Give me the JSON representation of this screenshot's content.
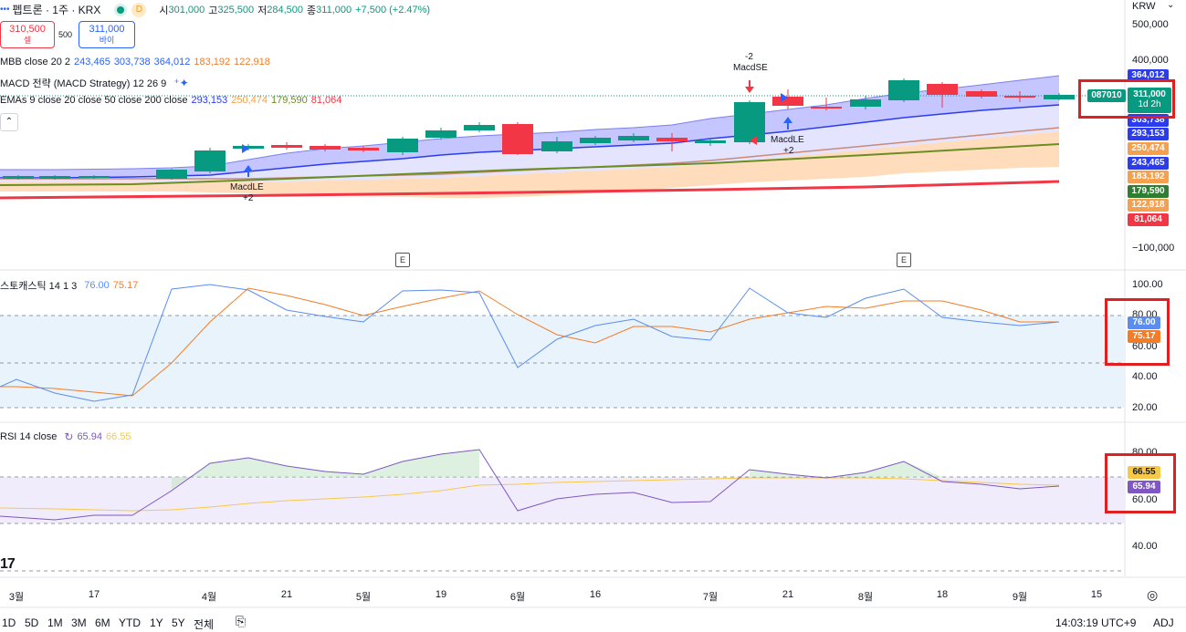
{
  "header": {
    "title": "펩트론 · 1주 · KRX",
    "status_label": "D",
    "open_label": "시",
    "open": "301,000",
    "high_label": "고",
    "high": "325,500",
    "low_label": "저",
    "low": "284,500",
    "close_label": "종",
    "close": "311,000",
    "change": "+7,500 (+2.47%)"
  },
  "trade": {
    "sell_price": "310,500",
    "sell_label": "셀",
    "qty": "500",
    "buy_price": "311,000",
    "buy_label": "바이"
  },
  "legends": {
    "mbb": {
      "label": "MBB close 20 2",
      "v1": "243,465",
      "v2": "303,738",
      "v3": "364,012",
      "v4": "183,192",
      "v5": "122,918"
    },
    "macd": {
      "label": "MACD 전략 (MACD Strategy) 12 26 9"
    },
    "emas": {
      "label": "EMAs 9 close 20 close 50 close 200 close",
      "v1": "293,153",
      "v2": "250,474",
      "v3": "179,590",
      "v4": "81,064"
    },
    "stoch": {
      "label": "스토캐스틱 14 1 3",
      "k": "76.00",
      "d": "75.17"
    },
    "rsi": {
      "label": "RSI 14 close",
      "v": "65.94",
      "ma": "66.55"
    }
  },
  "price_axis": {
    "currency": "KRW",
    "labels": [
      "500,000",
      "400,000",
      "−100,000"
    ],
    "tags": [
      "364,012",
      "303,738",
      "293,153",
      "250,474",
      "243,465",
      "183,192",
      "179,590",
      "122,918",
      "81,064"
    ],
    "symbol_tag": "087010",
    "last_price": "311,000",
    "countdown": "1d 2h"
  },
  "stoch_axis": {
    "labels": [
      "100.00",
      "80.00",
      "60.00",
      "40.00",
      "20.00"
    ],
    "k_tag": "76.00",
    "d_tag": "75.17"
  },
  "rsi_axis": {
    "labels": [
      "80.00",
      "60.00",
      "40.00"
    ],
    "ma_tag": "66.55",
    "rsi_tag": "65.94"
  },
  "time_axis": [
    "3월",
    "17",
    "4월",
    "21",
    "5월",
    "19",
    "6월",
    "16",
    "7월",
    "21",
    "8월",
    "18",
    "9월",
    "15"
  ],
  "signals": {
    "macd_le": "MacdLE",
    "macd_se": "MacdSE",
    "plus2": "+2",
    "minus2": "-2",
    "earnings": "E"
  },
  "toolbar": {
    "timeframes": [
      "1D",
      "5D",
      "1M",
      "3M",
      "6M",
      "YTD",
      "1Y",
      "5Y",
      "전체"
    ],
    "clock": "14:03:19 UTC+9",
    "adj": "ADJ"
  },
  "colors": {
    "up": "#089981",
    "down": "#f23645",
    "bb_fill_upper": "#9598ff",
    "bb_fill_lower": "#ffd1a6",
    "ema9": "#2b3cf0",
    "ema20": "#f5a04e",
    "ema50": "#6b8e23",
    "ema200": "#f23645",
    "stoch_k": "#5b8def",
    "stoch_d": "#f57c26",
    "rsi": "#7e57c2",
    "rsi_ma": "#f7c948",
    "highlight": "#e02020"
  }
}
